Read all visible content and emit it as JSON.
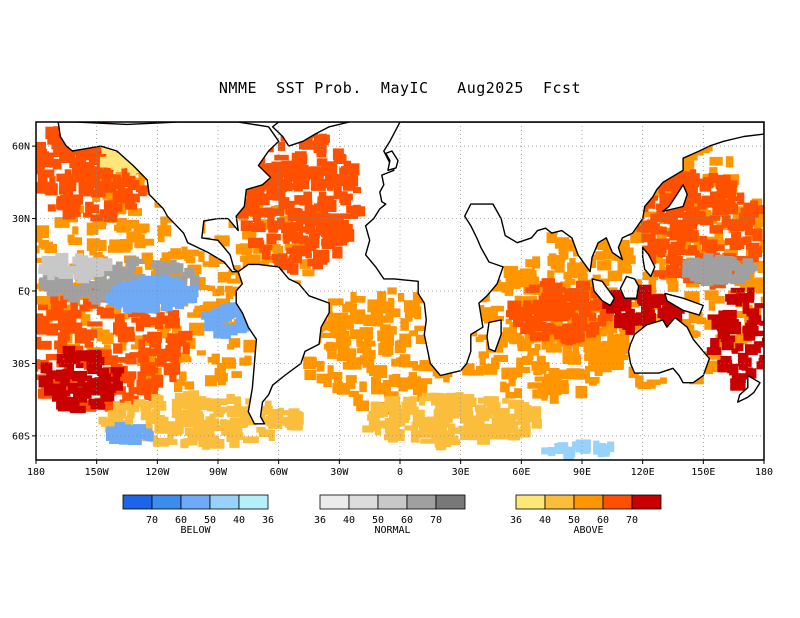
{
  "title": "NMME  SST Prob.  MayIC   Aug2025  Fcst",
  "map": {
    "lon_range": [
      180,
      540
    ],
    "lat_range": [
      -70,
      70
    ],
    "lat_ticks": [
      {
        "value": 60,
        "label": "60N"
      },
      {
        "value": 30,
        "label": "30N"
      },
      {
        "value": 0,
        "label": "EQ"
      },
      {
        "value": -30,
        "label": "30S"
      },
      {
        "value": -60,
        "label": "60S"
      }
    ],
    "lon_ticks": [
      {
        "value": 180,
        "label": "180"
      },
      {
        "value": 210,
        "label": "150W"
      },
      {
        "value": 240,
        "label": "120W"
      },
      {
        "value": 270,
        "label": "90W"
      },
      {
        "value": 300,
        "label": "60W"
      },
      {
        "value": 330,
        "label": "30W"
      },
      {
        "value": 360,
        "label": "0"
      },
      {
        "value": 390,
        "label": "30E"
      },
      {
        "value": 420,
        "label": "60E"
      },
      {
        "value": 450,
        "label": "90E"
      },
      {
        "value": 480,
        "label": "120E"
      },
      {
        "value": 510,
        "label": "150E"
      },
      {
        "value": 540,
        "label": "180"
      }
    ],
    "grid": true,
    "coastline_color": "#000000"
  },
  "colorbars": [
    {
      "name": "BELOW",
      "labels": [
        "70",
        "60",
        "50",
        "40",
        "36"
      ],
      "colors": [
        "#1e64e6",
        "#3c8cf0",
        "#6eaaf5",
        "#96d2fa",
        "#b4f0fa"
      ]
    },
    {
      "name": "NORMAL",
      "labels": [
        "36",
        "40",
        "50",
        "60",
        "70"
      ],
      "colors": [
        "#ebebeb",
        "#dcdcdc",
        "#c8c8c8",
        "#a0a0a0",
        "#787878"
      ]
    },
    {
      "name": "ABOVE",
      "labels": [
        "36",
        "40",
        "50",
        "60",
        "70"
      ],
      "colors": [
        "#ffe678",
        "#fbbe3c",
        "#ff9600",
        "#ff5000",
        "#c80000"
      ]
    }
  ]
}
